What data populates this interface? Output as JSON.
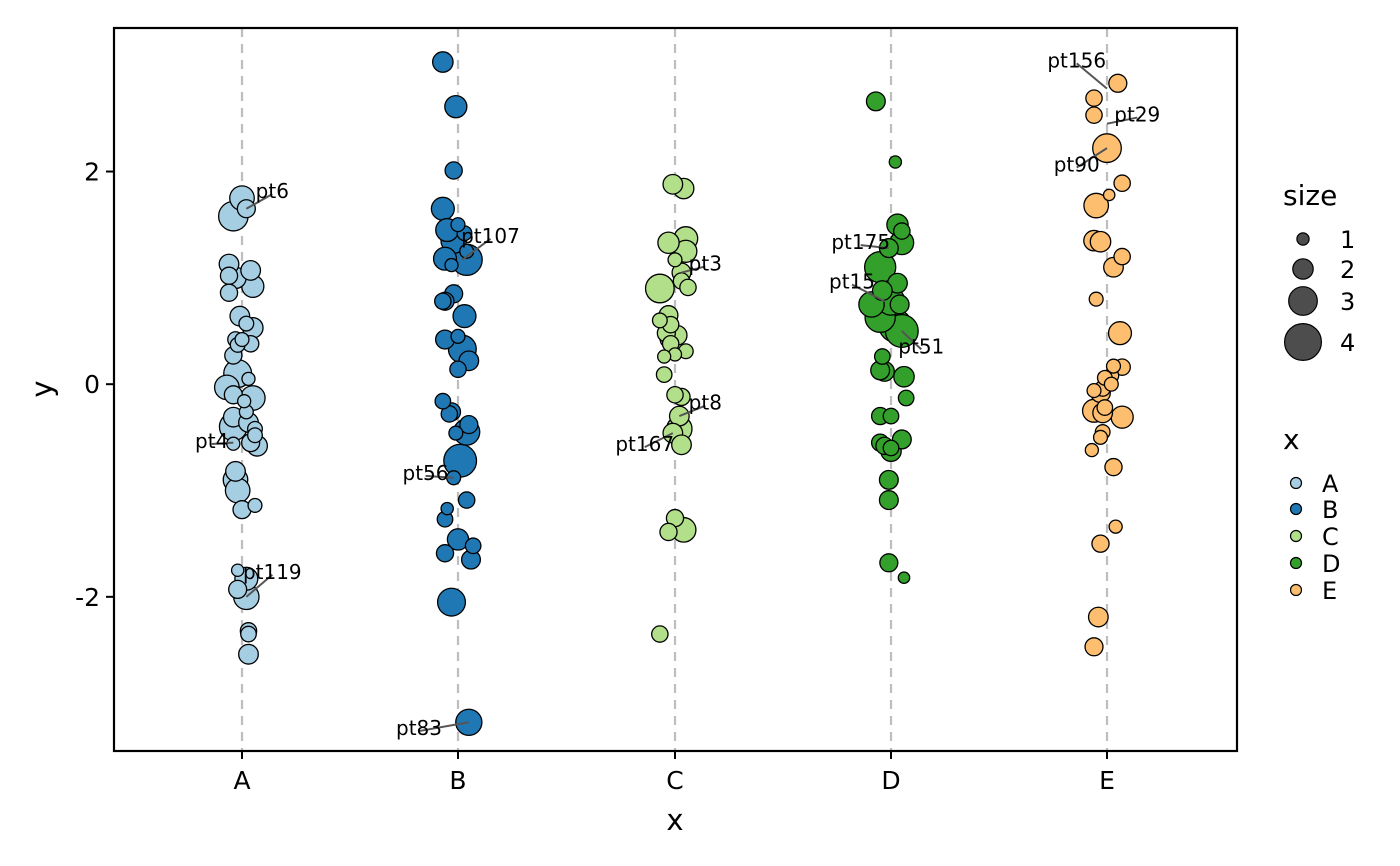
{
  "chart_data": {
    "type": "scatter",
    "title": "",
    "xlabel": "x",
    "ylabel": "y",
    "categories": [
      "A",
      "B",
      "C",
      "D",
      "E"
    ],
    "ylim": [
      -3.45,
      3.35
    ],
    "yticks": [
      -2,
      0,
      2
    ],
    "ytick_labels": [
      "-2",
      "0",
      "2"
    ],
    "grid": "vertical dashed lines at categories",
    "colors": {
      "A": "#A6CEE3",
      "B": "#1F78B4",
      "C": "#B2DF8A",
      "D": "#33A02C",
      "E": "#FDBF6F"
    },
    "legend": {
      "position": "right",
      "size_title": "size",
      "size_values": [
        1,
        2,
        3,
        4
      ],
      "color_title": "x",
      "color_values": [
        "A",
        "B",
        "C",
        "D",
        "E"
      ]
    },
    "points": {
      "A": [
        {
          "x": 0.0,
          "y": 1.75,
          "s": 2.6
        },
        {
          "x": -0.04,
          "y": 1.58,
          "s": 3.2
        },
        {
          "x": 0.02,
          "y": 1.65,
          "s": 1.8
        },
        {
          "x": -0.06,
          "y": 1.13,
          "s": 2.0
        },
        {
          "x": -0.06,
          "y": 1.02,
          "s": 1.7
        },
        {
          "x": 0.04,
          "y": 1.07,
          "s": 2.0
        },
        {
          "x": -0.03,
          "y": 1.0,
          "s": 2.2
        },
        {
          "x": 0.05,
          "y": 0.92,
          "s": 2.3
        },
        {
          "x": -0.06,
          "y": 0.86,
          "s": 1.7
        },
        {
          "x": -0.01,
          "y": 0.64,
          "s": 2.0
        },
        {
          "x": 0.05,
          "y": 0.53,
          "s": 2.1
        },
        {
          "x": 0.02,
          "y": 0.57,
          "s": 1.4
        },
        {
          "x": -0.03,
          "y": 0.42,
          "s": 1.5
        },
        {
          "x": -0.02,
          "y": 0.37,
          "s": 1.4
        },
        {
          "x": 0.0,
          "y": 0.42,
          "s": 1.3
        },
        {
          "x": 0.04,
          "y": 0.38,
          "s": 1.6
        },
        {
          "x": -0.04,
          "y": 0.27,
          "s": 1.7
        },
        {
          "x": -0.02,
          "y": 0.1,
          "s": 3.0
        },
        {
          "x": 0.03,
          "y": 0.05,
          "s": 1.2
        },
        {
          "x": -0.07,
          "y": -0.03,
          "s": 2.6
        },
        {
          "x": -0.04,
          "y": -0.1,
          "s": 1.8
        },
        {
          "x": 0.05,
          "y": -0.13,
          "s": 2.6
        },
        {
          "x": 0.01,
          "y": -0.16,
          "s": 1.2
        },
        {
          "x": 0.02,
          "y": -0.26,
          "s": 1.3
        },
        {
          "x": -0.04,
          "y": -0.31,
          "s": 2.0
        },
        {
          "x": 0.03,
          "y": -0.36,
          "s": 2.0
        },
        {
          "x": 0.06,
          "y": -0.42,
          "s": 1.4
        },
        {
          "x": -0.04,
          "y": -0.4,
          "s": 3.0
        },
        {
          "x": 0.06,
          "y": -0.48,
          "s": 1.4
        },
        {
          "x": 0.04,
          "y": -0.55,
          "s": 1.8
        },
        {
          "x": -0.04,
          "y": -0.56,
          "s": 1.2
        },
        {
          "x": 0.07,
          "y": -0.58,
          "s": 2.1
        },
        {
          "x": -0.03,
          "y": -0.82,
          "s": 2.0
        },
        {
          "x": -0.03,
          "y": -0.9,
          "s": 2.6
        },
        {
          "x": -0.02,
          "y": -1.0,
          "s": 2.6
        },
        {
          "x": 0.06,
          "y": -1.14,
          "s": 1.3
        },
        {
          "x": 0.0,
          "y": -1.18,
          "s": 1.8
        },
        {
          "x": -0.02,
          "y": -1.75,
          "s": 1.1
        },
        {
          "x": 0.02,
          "y": -1.83,
          "s": 2.4
        },
        {
          "x": -0.02,
          "y": -1.93,
          "s": 1.8
        },
        {
          "x": 0.02,
          "y": -2.0,
          "s": 2.7
        },
        {
          "x": 0.03,
          "y": -2.32,
          "s": 1.6
        },
        {
          "x": 0.03,
          "y": -2.35,
          "s": 1.5
        },
        {
          "x": 0.03,
          "y": -2.54,
          "s": 2.0
        }
      ],
      "B": [
        {
          "x": -0.07,
          "y": 3.03,
          "s": 2.1
        },
        {
          "x": -0.01,
          "y": 2.61,
          "s": 2.3
        },
        {
          "x": -0.02,
          "y": 2.01,
          "s": 1.7
        },
        {
          "x": -0.07,
          "y": 1.65,
          "s": 2.4
        },
        {
          "x": 0.0,
          "y": 1.5,
          "s": 1.3
        },
        {
          "x": -0.05,
          "y": 1.45,
          "s": 2.4
        },
        {
          "x": 0.03,
          "y": 1.42,
          "s": 1.4
        },
        {
          "x": -0.02,
          "y": 1.35,
          "s": 2.7
        },
        {
          "x": 0.04,
          "y": 1.25,
          "s": 1.3
        },
        {
          "x": -0.06,
          "y": 1.18,
          "s": 2.4
        },
        {
          "x": 0.04,
          "y": 1.17,
          "s": 3.4
        },
        {
          "x": -0.03,
          "y": 1.12,
          "s": 1.2
        },
        {
          "x": -0.02,
          "y": 0.85,
          "s": 1.8
        },
        {
          "x": -0.07,
          "y": 0.78,
          "s": 1.6
        },
        {
          "x": -0.06,
          "y": 0.78,
          "s": 1.8
        },
        {
          "x": 0.03,
          "y": 0.64,
          "s": 2.4
        },
        {
          "x": -0.06,
          "y": 0.42,
          "s": 1.9
        },
        {
          "x": 0.0,
          "y": 0.45,
          "s": 1.3
        },
        {
          "x": 0.02,
          "y": 0.33,
          "s": 3.0
        },
        {
          "x": 0.05,
          "y": 0.22,
          "s": 2.0
        },
        {
          "x": 0.0,
          "y": 0.14,
          "s": 1.6
        },
        {
          "x": -0.07,
          "y": -0.16,
          "s": 1.5
        },
        {
          "x": -0.03,
          "y": -0.26,
          "s": 1.8
        },
        {
          "x": -0.04,
          "y": -0.28,
          "s": 1.6
        },
        {
          "x": 0.05,
          "y": -0.38,
          "s": 1.8
        },
        {
          "x": 0.04,
          "y": -0.45,
          "s": 2.8
        },
        {
          "x": -0.01,
          "y": -0.46,
          "s": 1.3
        },
        {
          "x": 0.01,
          "y": -0.72,
          "s": 3.6
        },
        {
          "x": -0.02,
          "y": -0.88,
          "s": 1.3
        },
        {
          "x": 0.04,
          "y": -1.09,
          "s": 1.6
        },
        {
          "x": -0.05,
          "y": -1.17,
          "s": 1.1
        },
        {
          "x": -0.06,
          "y": -1.27,
          "s": 1.5
        },
        {
          "x": 0.0,
          "y": -1.46,
          "s": 2.2
        },
        {
          "x": 0.07,
          "y": -1.52,
          "s": 1.5
        },
        {
          "x": -0.06,
          "y": -1.59,
          "s": 1.7
        },
        {
          "x": 0.06,
          "y": -1.65,
          "s": 1.9
        },
        {
          "x": -0.03,
          "y": -2.05,
          "s": 3.0
        },
        {
          "x": 0.05,
          "y": -3.18,
          "s": 2.8
        }
      ],
      "C": [
        {
          "x": -0.01,
          "y": 1.88,
          "s": 2.0
        },
        {
          "x": 0.04,
          "y": 1.84,
          "s": 2.1
        },
        {
          "x": -0.03,
          "y": 1.33,
          "s": 2.2
        },
        {
          "x": 0.05,
          "y": 1.37,
          "s": 2.5
        },
        {
          "x": 0.05,
          "y": 1.25,
          "s": 2.3
        },
        {
          "x": 0.0,
          "y": 1.17,
          "s": 1.3
        },
        {
          "x": 0.03,
          "y": 1.05,
          "s": 1.9
        },
        {
          "x": 0.03,
          "y": 0.97,
          "s": 1.6
        },
        {
          "x": 0.06,
          "y": 0.91,
          "s": 1.6
        },
        {
          "x": -0.07,
          "y": 0.9,
          "s": 3.1
        },
        {
          "x": -0.03,
          "y": 0.65,
          "s": 1.9
        },
        {
          "x": -0.07,
          "y": 0.6,
          "s": 1.4
        },
        {
          "x": -0.02,
          "y": 0.56,
          "s": 1.6
        },
        {
          "x": -0.04,
          "y": 0.48,
          "s": 1.8
        },
        {
          "x": 0.01,
          "y": 0.46,
          "s": 2.0
        },
        {
          "x": -0.02,
          "y": 0.43,
          "s": 2.2
        },
        {
          "x": -0.02,
          "y": 0.38,
          "s": 1.6
        },
        {
          "x": 0.05,
          "y": 0.31,
          "s": 1.4
        },
        {
          "x": 0.0,
          "y": 0.28,
          "s": 1.2
        },
        {
          "x": -0.05,
          "y": 0.26,
          "s": 1.2
        },
        {
          "x": -0.05,
          "y": 0.09,
          "s": 1.5
        },
        {
          "x": 0.0,
          "y": -0.1,
          "s": 1.6
        },
        {
          "x": 0.03,
          "y": -0.12,
          "s": 1.7
        },
        {
          "x": 0.02,
          "y": -0.3,
          "s": 2.0
        },
        {
          "x": 0.02,
          "y": -0.42,
          "s": 2.7
        },
        {
          "x": -0.01,
          "y": -0.46,
          "s": 2.0
        },
        {
          "x": 0.03,
          "y": -0.57,
          "s": 2.0
        },
        {
          "x": 0.0,
          "y": -1.26,
          "s": 1.7
        },
        {
          "x": -0.03,
          "y": -1.39,
          "s": 1.7
        },
        {
          "x": 0.04,
          "y": -1.37,
          "s": 2.6
        },
        {
          "x": -0.07,
          "y": -2.35,
          "s": 1.6
        }
      ],
      "D": [
        {
          "x": -0.07,
          "y": 2.66,
          "s": 1.9
        },
        {
          "x": 0.02,
          "y": 2.09,
          "s": 1.1
        },
        {
          "x": 0.03,
          "y": 1.5,
          "s": 2.2
        },
        {
          "x": 0.05,
          "y": 1.44,
          "s": 1.6
        },
        {
          "x": 0.05,
          "y": 1.33,
          "s": 2.5
        },
        {
          "x": -0.01,
          "y": 1.28,
          "s": 1.9
        },
        {
          "x": -0.05,
          "y": 1.1,
          "s": 3.4
        },
        {
          "x": 0.03,
          "y": 0.95,
          "s": 2.0
        },
        {
          "x": -0.04,
          "y": 0.88,
          "s": 2.0
        },
        {
          "x": 0.0,
          "y": 0.78,
          "s": 3.0
        },
        {
          "x": -0.09,
          "y": 0.75,
          "s": 2.7
        },
        {
          "x": 0.04,
          "y": 0.75,
          "s": 1.9
        },
        {
          "x": -0.05,
          "y": 0.63,
          "s": 3.3
        },
        {
          "x": 0.02,
          "y": 0.55,
          "s": 3.6
        },
        {
          "x": 0.05,
          "y": 0.5,
          "s": 3.6
        },
        {
          "x": -0.04,
          "y": 0.26,
          "s": 1.5
        },
        {
          "x": -0.05,
          "y": 0.13,
          "s": 1.9
        },
        {
          "x": -0.03,
          "y": 0.12,
          "s": 2.0
        },
        {
          "x": 0.06,
          "y": 0.07,
          "s": 2.1
        },
        {
          "x": 0.07,
          "y": -0.13,
          "s": 1.5
        },
        {
          "x": -0.05,
          "y": -0.3,
          "s": 1.7
        },
        {
          "x": 0.0,
          "y": -0.3,
          "s": 1.5
        },
        {
          "x": -0.05,
          "y": -0.55,
          "s": 1.7
        },
        {
          "x": -0.03,
          "y": -0.58,
          "s": 1.7
        },
        {
          "x": 0.0,
          "y": -0.6,
          "s": 1.5
        },
        {
          "x": 0.05,
          "y": -0.52,
          "s": 1.9
        },
        {
          "x": 0.0,
          "y": -0.63,
          "s": 2.1
        },
        {
          "x": -0.01,
          "y": -0.9,
          "s": 1.9
        },
        {
          "x": -0.01,
          "y": -1.09,
          "s": 1.9
        },
        {
          "x": -0.01,
          "y": -1.68,
          "s": 1.8
        },
        {
          "x": 0.06,
          "y": -1.82,
          "s": 1.0
        }
      ],
      "E": [
        {
          "x": 0.05,
          "y": 2.83,
          "s": 1.8
        },
        {
          "x": -0.06,
          "y": 2.69,
          "s": 1.6
        },
        {
          "x": -0.06,
          "y": 2.53,
          "s": 1.6
        },
        {
          "x": 0.0,
          "y": 2.22,
          "s": 3.1
        },
        {
          "x": 0.07,
          "y": 1.89,
          "s": 1.6
        },
        {
          "x": 0.01,
          "y": 1.78,
          "s": 1.0
        },
        {
          "x": -0.05,
          "y": 1.68,
          "s": 2.6
        },
        {
          "x": -0.06,
          "y": 1.35,
          "s": 2.1
        },
        {
          "x": -0.03,
          "y": 1.34,
          "s": 2.1
        },
        {
          "x": 0.07,
          "y": 1.2,
          "s": 1.6
        },
        {
          "x": 0.03,
          "y": 1.1,
          "s": 2.0
        },
        {
          "x": -0.05,
          "y": 0.8,
          "s": 1.3
        },
        {
          "x": 0.06,
          "y": 0.48,
          "s": 2.4
        },
        {
          "x": 0.03,
          "y": 0.17,
          "s": 1.3
        },
        {
          "x": 0.07,
          "y": 0.16,
          "s": 1.6
        },
        {
          "x": 0.02,
          "y": 0.08,
          "s": 1.4
        },
        {
          "x": -0.01,
          "y": 0.06,
          "s": 1.4
        },
        {
          "x": 0.02,
          "y": 0.0,
          "s": 1.3
        },
        {
          "x": -0.02,
          "y": -0.04,
          "s": 1.5
        },
        {
          "x": -0.03,
          "y": -0.08,
          "s": 2.0
        },
        {
          "x": -0.06,
          "y": -0.06,
          "s": 1.3
        },
        {
          "x": -0.01,
          "y": -0.22,
          "s": 1.5
        },
        {
          "x": -0.06,
          "y": -0.25,
          "s": 2.4
        },
        {
          "x": -0.02,
          "y": -0.27,
          "s": 2.0
        },
        {
          "x": 0.07,
          "y": -0.31,
          "s": 2.3
        },
        {
          "x": -0.02,
          "y": -0.45,
          "s": 1.4
        },
        {
          "x": -0.03,
          "y": -0.5,
          "s": 1.3
        },
        {
          "x": -0.07,
          "y": -0.62,
          "s": 1.2
        },
        {
          "x": 0.03,
          "y": -0.78,
          "s": 1.7
        },
        {
          "x": 0.04,
          "y": -1.34,
          "s": 1.2
        },
        {
          "x": -0.03,
          "y": -1.5,
          "s": 1.7
        },
        {
          "x": -0.04,
          "y": -2.19,
          "s": 2.0
        },
        {
          "x": -0.06,
          "y": -2.47,
          "s": 1.8
        }
      ]
    },
    "annotations": [
      {
        "text": "pt6",
        "cat": "A",
        "x": 0.02,
        "y": 1.65,
        "lx": 0.14,
        "ly": 1.75
      },
      {
        "text": "pt4",
        "cat": "A",
        "x": -0.04,
        "y": -0.55,
        "lx": -0.14,
        "ly": -0.6
      },
      {
        "text": "pt119",
        "cat": "A",
        "x": 0.02,
        "y": -2.0,
        "lx": 0.14,
        "ly": -1.83
      },
      {
        "text": "pt107",
        "cat": "B",
        "x": 0.02,
        "y": 1.17,
        "lx": 0.15,
        "ly": 1.33
      },
      {
        "text": "pt56",
        "cat": "B",
        "x": -0.02,
        "y": -0.88,
        "lx": -0.15,
        "ly": -0.9
      },
      {
        "text": "pt83",
        "cat": "B",
        "x": 0.05,
        "y": -3.18,
        "lx": -0.18,
        "ly": -3.3
      },
      {
        "text": "pt3",
        "cat": "C",
        "x": 0.03,
        "y": 1.05,
        "lx": 0.14,
        "ly": 1.07
      },
      {
        "text": "pt8",
        "cat": "C",
        "x": 0.02,
        "y": -0.3,
        "lx": 0.14,
        "ly": -0.24
      },
      {
        "text": "pt167",
        "cat": "C",
        "x": -0.01,
        "y": -0.46,
        "lx": -0.14,
        "ly": -0.63
      },
      {
        "text": "pt175",
        "cat": "D",
        "x": -0.01,
        "y": 1.28,
        "lx": -0.14,
        "ly": 1.27
      },
      {
        "text": "pt15",
        "cat": "D",
        "x": -0.03,
        "y": 0.78,
        "lx": -0.18,
        "ly": 0.9
      },
      {
        "text": "pt51",
        "cat": "D",
        "x": 0.05,
        "y": 0.5,
        "lx": 0.14,
        "ly": 0.29
      },
      {
        "text": "pt156",
        "cat": "E",
        "x": 0.0,
        "y": 2.78,
        "lx": -0.14,
        "ly": 2.98
      },
      {
        "text": "pt29",
        "cat": "E",
        "x": 0.0,
        "y": 2.45,
        "lx": 0.14,
        "ly": 2.47
      },
      {
        "text": "pt90",
        "cat": "E",
        "x": 0.0,
        "y": 2.22,
        "lx": -0.14,
        "ly": 2.0
      }
    ]
  }
}
